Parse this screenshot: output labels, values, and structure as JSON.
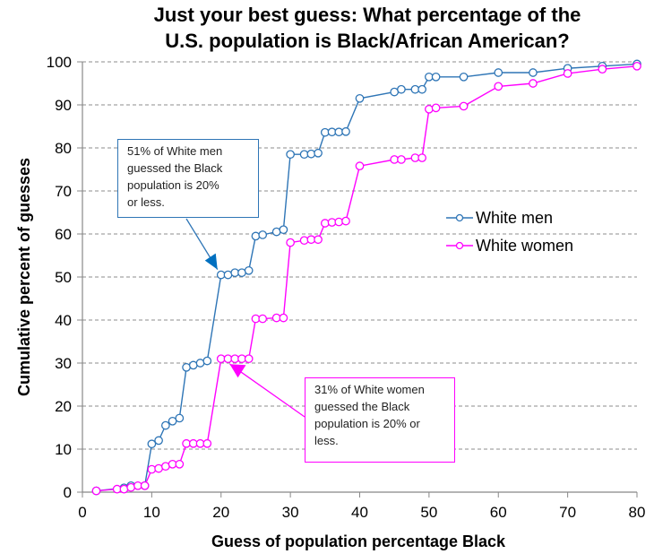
{
  "chart_data": {
    "type": "line",
    "title": "Just your best guess: What percentage of the U.S. population is Black/African American?",
    "title_lines": [
      "Just your best guess: What percentage of the",
      "U.S. population is Black/African American?"
    ],
    "xlabel": "Guess of population percentage Black",
    "ylabel": "Cumulative percent of guesses",
    "xlim": [
      0,
      80
    ],
    "ylim": [
      0,
      100
    ],
    "x_ticks": [
      0,
      10,
      20,
      30,
      40,
      50,
      60,
      70,
      80
    ],
    "y_ticks": [
      0,
      10,
      20,
      30,
      40,
      50,
      60,
      70,
      80,
      90,
      100
    ],
    "grid": "horizontal dashed",
    "legend_position": "right-middle",
    "series": [
      {
        "name": "White men",
        "color": "#2E75B6",
        "marker": "open-circle",
        "points": [
          [
            2,
            0.3
          ],
          [
            6,
            1.0
          ],
          [
            7,
            1.5
          ],
          [
            9,
            1.5
          ],
          [
            10,
            11.2
          ],
          [
            11,
            12.0
          ],
          [
            12,
            15.5
          ],
          [
            13,
            16.5
          ],
          [
            14,
            17.2
          ],
          [
            15,
            29.0
          ],
          [
            16,
            29.5
          ],
          [
            17,
            30.0
          ],
          [
            18,
            30.5
          ],
          [
            20,
            50.5
          ],
          [
            21,
            50.5
          ],
          [
            22,
            51.0
          ],
          [
            23,
            51.0
          ],
          [
            24,
            51.5
          ],
          [
            25,
            59.5
          ],
          [
            26,
            59.8
          ],
          [
            28,
            60.5
          ],
          [
            29,
            61.0
          ],
          [
            30,
            78.5
          ],
          [
            32,
            78.5
          ],
          [
            33,
            78.6
          ],
          [
            34,
            78.8
          ],
          [
            35,
            83.6
          ],
          [
            36,
            83.7
          ],
          [
            37,
            83.7
          ],
          [
            38,
            83.8
          ],
          [
            40,
            91.5
          ],
          [
            45,
            93.0
          ],
          [
            46,
            93.6
          ],
          [
            48,
            93.6
          ],
          [
            49,
            93.6
          ],
          [
            50,
            96.5
          ],
          [
            51,
            96.5
          ],
          [
            55,
            96.5
          ],
          [
            60,
            97.5
          ],
          [
            65,
            97.5
          ],
          [
            70,
            98.5
          ],
          [
            75,
            99.0
          ],
          [
            80,
            99.5
          ]
        ]
      },
      {
        "name": "White women",
        "color": "#FF00FF",
        "marker": "open-circle",
        "points": [
          [
            2,
            0.3
          ],
          [
            5,
            0.7
          ],
          [
            6,
            0.7
          ],
          [
            7,
            1.1
          ],
          [
            8,
            1.5
          ],
          [
            9,
            1.5
          ],
          [
            10,
            5.3
          ],
          [
            11,
            5.5
          ],
          [
            12,
            6.0
          ],
          [
            13,
            6.5
          ],
          [
            14,
            6.5
          ],
          [
            15,
            11.3
          ],
          [
            16,
            11.3
          ],
          [
            17,
            11.3
          ],
          [
            18,
            11.3
          ],
          [
            20,
            31.0
          ],
          [
            21,
            31.0
          ],
          [
            22,
            31.0
          ],
          [
            23,
            31.0
          ],
          [
            24,
            31.0
          ],
          [
            25,
            40.3
          ],
          [
            26,
            40.3
          ],
          [
            28,
            40.5
          ],
          [
            29,
            40.5
          ],
          [
            30,
            58.0
          ],
          [
            32,
            58.5
          ],
          [
            33,
            58.7
          ],
          [
            34,
            58.7
          ],
          [
            35,
            62.5
          ],
          [
            36,
            62.7
          ],
          [
            37,
            62.8
          ],
          [
            38,
            63.0
          ],
          [
            40,
            75.8
          ],
          [
            45,
            77.3
          ],
          [
            46,
            77.3
          ],
          [
            48,
            77.7
          ],
          [
            49,
            77.7
          ],
          [
            50,
            89.0
          ],
          [
            51,
            89.3
          ],
          [
            55,
            89.7
          ],
          [
            60,
            94.3
          ],
          [
            65,
            95.0
          ],
          [
            70,
            97.3
          ],
          [
            75,
            98.3
          ],
          [
            80,
            99.0
          ]
        ]
      }
    ],
    "annotations": [
      {
        "series": "White men",
        "text": "51% of White men guessed the Black population is 20% or less.",
        "lines": [
          "51% of White men",
          "guessed the Black",
          "population is 20%",
          "or less."
        ],
        "points_to": [
          20,
          50.5
        ]
      },
      {
        "series": "White women",
        "text": "31% of White women guessed the Black population is 20% or less.",
        "lines": [
          "31% of White women",
          "guessed the Black",
          "population is 20% or",
          "less."
        ],
        "points_to": [
          21,
          31.0
        ]
      }
    ]
  }
}
